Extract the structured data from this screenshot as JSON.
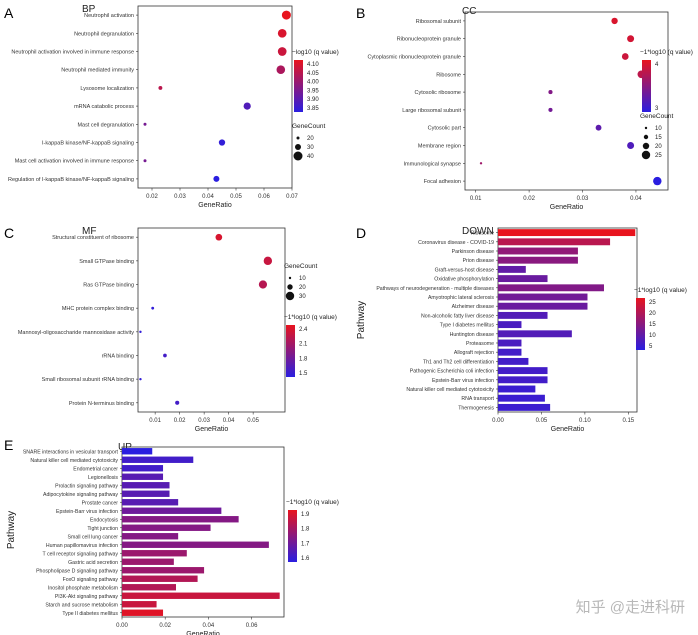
{
  "palette": {
    "high": "#e8141e",
    "low": "#2a1ee0",
    "axis": "#333333",
    "panel_border": "#333333",
    "tick_text": "#333333"
  },
  "watermark": {
    "text": "知乎 @走进科研"
  },
  "chart_data": [
    {
      "panel": "A",
      "type": "scatter",
      "title": "BP",
      "xlabel": "GeneRatio",
      "ylabel": "",
      "xlim": [
        0.015,
        0.07
      ],
      "xticks": [
        0.02,
        0.03,
        0.04,
        0.05,
        0.06,
        0.07
      ],
      "categories": [
        "Neutrophil activation",
        "Neutrophil degranulation",
        "Neutrophil activation involved in immune response",
        "Neutrophil mediated immunity",
        "Lysosome localization",
        "mRNA catabolic process",
        "Mast cell degranulation",
        "I-kappaB kinase/NF-kappaB signaling",
        "Mast cell activation involved in immune response",
        "Regulation of I-kappaB kinase/NF-kappaB signaling"
      ],
      "x": [
        0.068,
        0.0665,
        0.0665,
        0.066,
        0.023,
        0.054,
        0.0175,
        0.045,
        0.0175,
        0.043
      ],
      "size": [
        48,
        46,
        46,
        45,
        14,
        36,
        8,
        30,
        8,
        28
      ],
      "color": [
        4.1,
        4.08,
        4.06,
        4.02,
        4.04,
        3.9,
        3.95,
        3.86,
        3.95,
        3.85
      ],
      "color_legend": {
        "title": "−log10 (q value)",
        "ticks": [
          "4.10",
          "4.05",
          "4.00",
          "3.95",
          "3.90",
          "3.85"
        ],
        "range": [
          3.85,
          4.1
        ]
      },
      "size_legend": {
        "title": "GeneCount",
        "ticks": [
          "20",
          "30",
          "40"
        ]
      }
    },
    {
      "panel": "B",
      "type": "scatter",
      "title": "CC",
      "xlabel": "GeneRatio",
      "ylabel": "",
      "xlim": [
        0.008,
        0.046
      ],
      "xticks": [
        0.01,
        0.02,
        0.03,
        0.04
      ],
      "categories": [
        "Ribosomal subunit",
        "Ribonucleoprotein granule",
        "Cytoplasmic ribonucleoprotein granule",
        "Ribosome",
        "Cytosolic ribosome",
        "Large ribosomal subunit",
        "Cytosolic part",
        "Membrane region",
        "Immunological synapse",
        "Focal adhesion"
      ],
      "x": [
        0.036,
        0.039,
        0.038,
        0.041,
        0.024,
        0.024,
        0.033,
        0.039,
        0.011,
        0.044
      ],
      "size": [
        22,
        24,
        23,
        26,
        14,
        14,
        20,
        24,
        8,
        29
      ],
      "color": [
        4.6,
        4.5,
        4.4,
        4.2,
        3.4,
        3.2,
        2.9,
        2.7,
        3.8,
        2.2
      ],
      "color_legend": {
        "title": "−1*log10 (q value)",
        "ticks": [
          "4",
          "3"
        ],
        "range": [
          2.2,
          4.8
        ]
      },
      "size_legend": {
        "title": "GeneCount",
        "ticks": [
          "10",
          "15",
          "20",
          "25"
        ]
      }
    },
    {
      "panel": "C",
      "type": "scatter",
      "title": "MF",
      "xlabel": "GeneRatio",
      "ylabel": "",
      "xlim": [
        0.003,
        0.063
      ],
      "xticks": [
        0.01,
        0.02,
        0.03,
        0.04,
        0.05
      ],
      "tick_labels": [
        "0.01",
        "0.02",
        "0.03",
        "0.04",
        "0.05"
      ],
      "categories": [
        "Structural constituent of ribosome",
        "Small GTPase binding",
        "Ras GTPase binding",
        "MHC protein complex binding",
        "Mannosyl-oligosaccharide mannosidase activity",
        "rRNA binding",
        "Small ribosomal subunit rRNA binding",
        "Protein N-terminus binding"
      ],
      "x": [
        0.036,
        0.056,
        0.054,
        0.009,
        0.004,
        0.014,
        0.004,
        0.019
      ],
      "size": [
        26,
        34,
        33,
        8,
        6,
        12,
        6,
        14
      ],
      "color": [
        2.5,
        2.4,
        2.3,
        1.5,
        1.5,
        1.6,
        1.5,
        1.6
      ],
      "color_legend": {
        "title": "−1*log10 (q value)",
        "ticks": [
          "2.4",
          "2.1",
          "1.8",
          "1.5"
        ],
        "range": [
          1.45,
          2.6
        ]
      },
      "size_legend": {
        "title": "GeneCount",
        "ticks": [
          "10",
          "20",
          "30"
        ]
      }
    },
    {
      "panel": "D",
      "type": "bar",
      "title": "DOWN",
      "xlabel": "GeneRatio",
      "ylabel": "Pathway",
      "xlim": [
        0,
        0.16
      ],
      "xticks": [
        0.0,
        0.05,
        0.1,
        0.15
      ],
      "tick_labels": [
        "0.00",
        "0.05",
        "0.10",
        "0.15"
      ],
      "categories": [
        "Ribosome",
        "Coronavirus disease - COVID-19",
        "Parkinson disease",
        "Prion disease",
        "Graft-versus-host disease",
        "Oxidative phosphorylation",
        "Pathways of neurodegeneration - multiple diseases",
        "Amyotrophic lateral sclerosis",
        "Alzheimer disease",
        "Non-alcoholic fatty liver disease",
        "Type I diabetes mellitus",
        "Huntington disease",
        "Proteasome",
        "Allograft rejection",
        "Th1 and Th2 cell differentiation",
        "Pathogenic Escherichia coli infection",
        "Epstein-Barr virus infection",
        "Natural killer cell mediated cytotoxicity",
        "RNA transport",
        "Thermogenesis"
      ],
      "values": [
        0.158,
        0.129,
        0.092,
        0.092,
        0.032,
        0.057,
        0.122,
        0.103,
        0.103,
        0.057,
        0.027,
        0.085,
        0.027,
        0.027,
        0.035,
        0.057,
        0.057,
        0.043,
        0.054,
        0.06
      ],
      "color": [
        28,
        22,
        17,
        16,
        11,
        12,
        15,
        13,
        12,
        9,
        8,
        9,
        8,
        7,
        7,
        7,
        7,
        6,
        6,
        6
      ],
      "color_legend": {
        "title": "−1*log10 (q value)",
        "ticks": [
          "25",
          "20",
          "15",
          "10",
          "5"
        ],
        "range": [
          4,
          28
        ]
      }
    },
    {
      "panel": "E",
      "type": "bar",
      "title": "UP",
      "xlabel": "GeneRatio",
      "ylabel": "Pathway",
      "xlim": [
        0,
        0.075
      ],
      "xticks": [
        0.0,
        0.02,
        0.04,
        0.06
      ],
      "tick_labels": [
        "0.00",
        "0.02",
        "0.04",
        "0.06"
      ],
      "categories": [
        "SNARE interactions in vesicular transport",
        "Natural killer cell mediated cytotoxicity",
        "Endometrial cancer",
        "Legionellosis",
        "Prolactin signaling pathway",
        "Adipocytokine signaling pathway",
        "Prostate cancer",
        "Epstein-Barr virus infection",
        "Endocytosis",
        "Tight junction",
        "Small cell lung cancer",
        "Human papillomavirus infection",
        "T cell receptor signaling pathway",
        "Gastric acid secretion",
        "Phospholipase D signaling pathway",
        "FoxO signaling pathway",
        "Inositol phosphate metabolism",
        "PI3K-Akt signaling pathway",
        "Starch and sucrose metabolism",
        "Type II diabetes mellitus"
      ],
      "values": [
        0.014,
        0.033,
        0.019,
        0.019,
        0.022,
        0.022,
        0.026,
        0.046,
        0.054,
        0.041,
        0.026,
        0.068,
        0.03,
        0.024,
        0.038,
        0.035,
        0.025,
        0.073,
        0.016,
        0.019
      ],
      "color": [
        1.55,
        1.6,
        1.6,
        1.65,
        1.65,
        1.65,
        1.65,
        1.7,
        1.75,
        1.75,
        1.75,
        1.75,
        1.8,
        1.8,
        1.8,
        1.85,
        1.85,
        1.9,
        1.9,
        1.95
      ],
      "color_legend": {
        "title": "−1*log10 (q value)",
        "ticks": [
          "1.9",
          "1.8",
          "1.7",
          "1.6"
        ],
        "range": [
          1.55,
          1.97
        ]
      }
    }
  ]
}
